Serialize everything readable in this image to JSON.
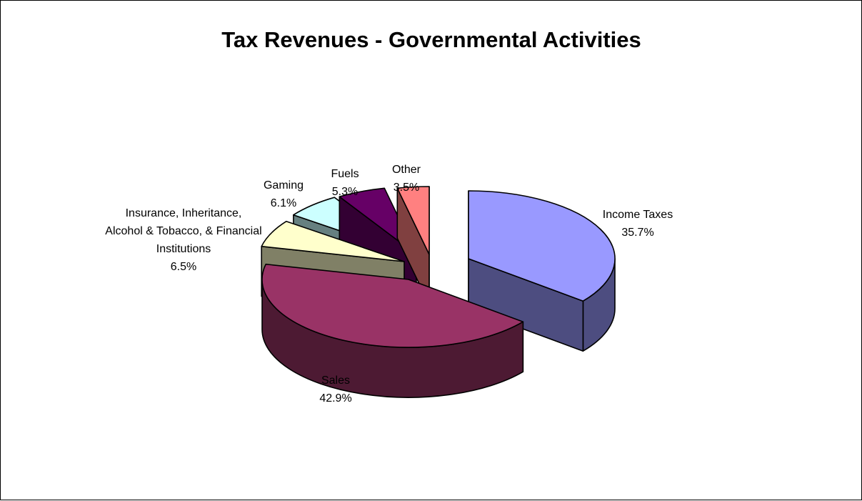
{
  "chart_data": {
    "type": "pie",
    "title": "Tax Revenues - Governmental Activities",
    "slices": [
      {
        "key": "income",
        "label_lines": [
          "Income Taxes"
        ],
        "value_text": "35.7%",
        "value": 35.7,
        "top_color": "#9999ff",
        "side_color": "#4d4d80"
      },
      {
        "key": "sales",
        "label_lines": [
          "Sales"
        ],
        "value_text": "42.9%",
        "value": 42.9,
        "top_color": "#993366",
        "side_color": "#4d1a33"
      },
      {
        "key": "insurance",
        "label_lines": [
          "Insurance, Inheritance,",
          "Alcohol & Tobacco, & Financial",
          "Institutions"
        ],
        "value_text": "6.5%",
        "value": 6.5,
        "top_color": "#ffffcc",
        "side_color": "#808066"
      },
      {
        "key": "gaming",
        "label_lines": [
          "Gaming"
        ],
        "value_text": "6.1%",
        "value": 6.1,
        "top_color": "#ccffff",
        "side_color": "#668080"
      },
      {
        "key": "fuels",
        "label_lines": [
          "Fuels"
        ],
        "value_text": "5.3%",
        "value": 5.3,
        "top_color": "#660066",
        "side_color": "#330033"
      },
      {
        "key": "other",
        "label_lines": [
          "Other"
        ],
        "value_text": "3.5%",
        "value": 3.5,
        "top_color": "#ff8080",
        "side_color": "#804040"
      }
    ]
  }
}
